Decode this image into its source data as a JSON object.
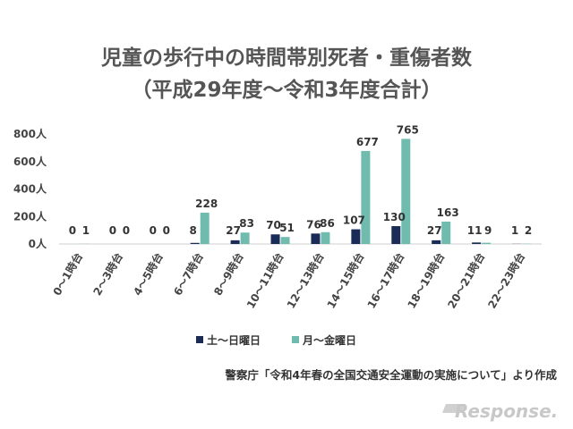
{
  "chart_data": {
    "type": "bar",
    "title": "児童の歩行中の時間帯別死者・重傷者数",
    "subtitle": "（平成29年度〜令和3年度合計）",
    "categories": [
      "0〜1時台",
      "2〜3時台",
      "4〜5時台",
      "6〜7時台",
      "8〜9時台",
      "10〜11時台",
      "12〜13時台",
      "14〜15時台",
      "16〜17時台",
      "18〜19時台",
      "20〜21時台",
      "22〜23時台"
    ],
    "series": [
      {
        "name": "土〜日曜日",
        "values": [
          0,
          0,
          0,
          8,
          27,
          70,
          76,
          107,
          130,
          27,
          11,
          1
        ]
      },
      {
        "name": "月〜金曜日",
        "values": [
          1,
          0,
          0,
          228,
          83,
          51,
          86,
          677,
          765,
          163,
          9,
          2
        ]
      }
    ],
    "y_ticks": [
      "0人",
      "200人",
      "400人",
      "600人",
      "800人"
    ],
    "ylim": [
      0,
      800
    ],
    "grid": false,
    "legend": "bottom",
    "source": "警察庁「令和4年春の全国交通安全運動の実施について」より作成",
    "colors": {
      "weekend": "#1a2b57",
      "weekday": "#6fbcaf"
    }
  },
  "watermark": "Response."
}
